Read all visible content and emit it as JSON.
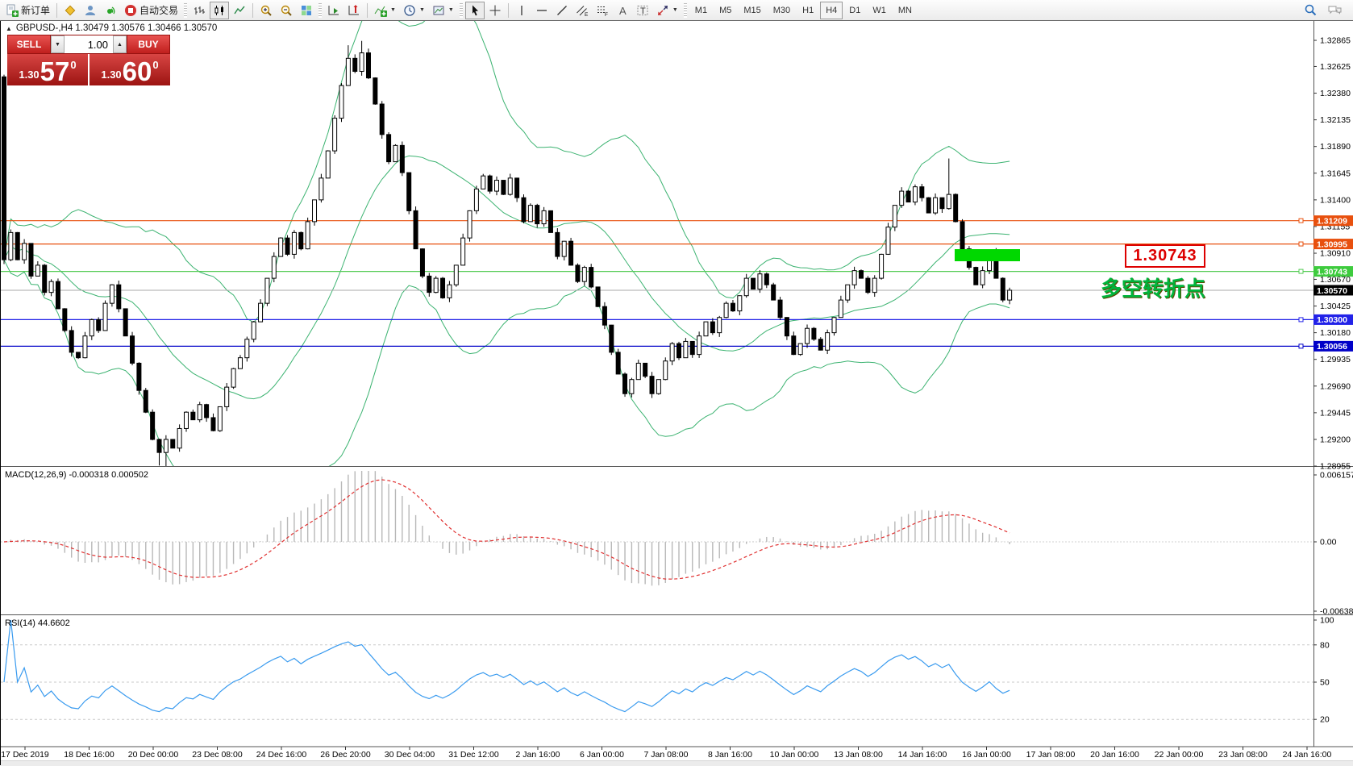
{
  "toolbar": {
    "new_order_label": "新订单",
    "autotrade_label": "自动交易",
    "timeframes": [
      "M1",
      "M5",
      "M15",
      "M30",
      "H1",
      "H4",
      "D1",
      "W1",
      "MN"
    ],
    "active_timeframe": "H4"
  },
  "icons": {
    "collapse_arrow": "▲",
    "spin_down": "▼",
    "spin_up": "▲",
    "dropdown": "▼"
  },
  "chart": {
    "symbol_line": "GBPUSD-,H4  1.30479 1.30576 1.30466 1.30570",
    "trade_panel": {
      "sell_label": "SELL",
      "buy_label": "BUY",
      "volume": "1.00",
      "sell_small": "1.30",
      "sell_big": "57",
      "sell_sup": "0",
      "buy_small": "1.30",
      "buy_big": "60",
      "buy_sup": "0"
    },
    "annotations": {
      "price_box": "1.30743",
      "cn_text": "多空转折点"
    },
    "price_axis_ticks": [
      "1.32865",
      "1.32625",
      "1.32380",
      "1.32135",
      "1.31890",
      "1.31645",
      "1.31400",
      "1.31155",
      "1.30910",
      "1.30670",
      "1.30425",
      "1.30180",
      "1.29935",
      "1.29690",
      "1.29445",
      "1.29200",
      "1.28955"
    ],
    "price_tags": [
      {
        "label": "1.31209",
        "price": 1.31209,
        "bg": "#e8500e"
      },
      {
        "label": "1.30995",
        "price": 1.30995,
        "bg": "#e8500e"
      },
      {
        "label": "1.30743",
        "price": 1.30743,
        "bg": "#3ecb3e"
      },
      {
        "label": "1.30570",
        "price": 1.3057,
        "bg": "#000000"
      },
      {
        "label": "1.30300",
        "price": 1.303,
        "bg": "#2222e8"
      },
      {
        "label": "1.30056",
        "price": 1.30056,
        "bg": "#0000c8"
      }
    ],
    "hlines": [
      {
        "price": 1.31209,
        "color": "#e8500e"
      },
      {
        "price": 1.30995,
        "color": "#e8500e"
      },
      {
        "price": 1.30743,
        "color": "#55cc55"
      },
      {
        "price": 1.303,
        "color": "#2222e8"
      },
      {
        "price": 1.30056,
        "color": "#0000c8"
      }
    ],
    "current_price": 1.3057
  },
  "macd": {
    "label": "MACD(12,26,9) -0.000318 0.000502",
    "axis": [
      "0.006157",
      "0.00",
      "-0.00638"
    ]
  },
  "rsi": {
    "label": "RSI(14) 44.6602",
    "axis": [
      "100",
      "80",
      "50",
      "20"
    ],
    "levels": [
      80,
      50,
      20
    ]
  },
  "time_axis": {
    "labels": [
      "17 Dec 2019",
      "18 Dec 16:00",
      "20 Dec 00:00",
      "23 Dec 08:00",
      "24 Dec 16:00",
      "26 Dec 20:00",
      "30 Dec 04:00",
      "31 Dec 12:00",
      "2 Jan 16:00",
      "6 Jan 00:00",
      "7 Jan 08:00",
      "8 Jan 16:00",
      "10 Jan 00:00",
      "13 Jan 08:00",
      "14 Jan 16:00",
      "16 Jan 00:00",
      "17 Jan 08:00",
      "20 Jan 16:00",
      "22 Jan 00:00",
      "23 Jan 08:00",
      "24 Jan 16:00"
    ]
  },
  "chart_data": {
    "type": "candlestick",
    "symbol": "GBPUSD-",
    "timeframe": "H4",
    "quote": {
      "open": 1.30479,
      "high": 1.30576,
      "low": 1.30466,
      "close": 1.3057
    },
    "ylim": [
      1.28955,
      1.32865
    ],
    "first_open": 1.3253,
    "closes": [
      1.3085,
      1.311,
      1.3085,
      1.31,
      1.307,
      1.308,
      1.3055,
      1.3065,
      1.304,
      1.302,
      1.3,
      1.2995,
      1.3015,
      1.303,
      1.302,
      1.3045,
      1.3062,
      1.304,
      1.3015,
      1.299,
      1.2965,
      1.2945,
      1.292,
      1.2908,
      1.292,
      1.2912,
      1.293,
      1.2945,
      1.2938,
      1.2952,
      1.294,
      1.2928,
      1.295,
      1.2968,
      1.2985,
      1.2995,
      1.3012,
      1.3028,
      1.3045,
      1.3068,
      1.3088,
      1.3105,
      1.309,
      1.311,
      1.3095,
      1.312,
      1.314,
      1.316,
      1.3185,
      1.3215,
      1.3245,
      1.327,
      1.3258,
      1.3275,
      1.3252,
      1.3228,
      1.32,
      1.3175,
      1.319,
      1.3165,
      1.313,
      1.3095,
      1.307,
      1.3055,
      1.3068,
      1.305,
      1.3062,
      1.308,
      1.3105,
      1.313,
      1.315,
      1.3162,
      1.3148,
      1.3158,
      1.3145,
      1.316,
      1.3142,
      1.312,
      1.3135,
      1.3118,
      1.313,
      1.311,
      1.3088,
      1.3102,
      1.308,
      1.3065,
      1.3078,
      1.306,
      1.3042,
      1.3025,
      1.3,
      1.298,
      1.2962,
      1.2975,
      1.299,
      1.2978,
      1.2962,
      1.2975,
      1.2992,
      1.3008,
      1.2995,
      1.301,
      1.2998,
      1.3015,
      1.3028,
      1.3018,
      1.3032,
      1.3045,
      1.3038,
      1.3052,
      1.3068,
      1.3058,
      1.3072,
      1.3062,
      1.3048,
      1.3032,
      1.3015,
      1.2998,
      1.3008,
      1.3022,
      1.3012,
      1.3002,
      1.3018,
      1.3032,
      1.3048,
      1.3062,
      1.3075,
      1.3068,
      1.3055,
      1.3068,
      1.309,
      1.3115,
      1.3135,
      1.3148,
      1.3138,
      1.3152,
      1.3142,
      1.3128,
      1.3142,
      1.3132,
      1.3145,
      1.312,
      1.3095,
      1.3078,
      1.3062,
      1.3075,
      1.3092,
      1.3068,
      1.3048,
      1.3057
    ],
    "wick_overrides": {
      "23": {
        "low": 1.2896
      },
      "24": {
        "low": 1.2891
      },
      "51": {
        "high": 1.3282
      },
      "53": {
        "high": 1.3286
      },
      "140": {
        "high": 1.3178
      }
    },
    "indicators": {
      "bollinger": {
        "period": 20,
        "deviation": 2
      },
      "macd": {
        "fast": 12,
        "slow": 26,
        "signal": 9,
        "value": -0.000318,
        "signal_value": 0.000502
      },
      "rsi": {
        "period": 14,
        "value": 44.6602
      }
    },
    "highlight_rect": {
      "x": 1183,
      "y": 283,
      "w": 81,
      "h": 15,
      "color": "#00d800"
    }
  }
}
